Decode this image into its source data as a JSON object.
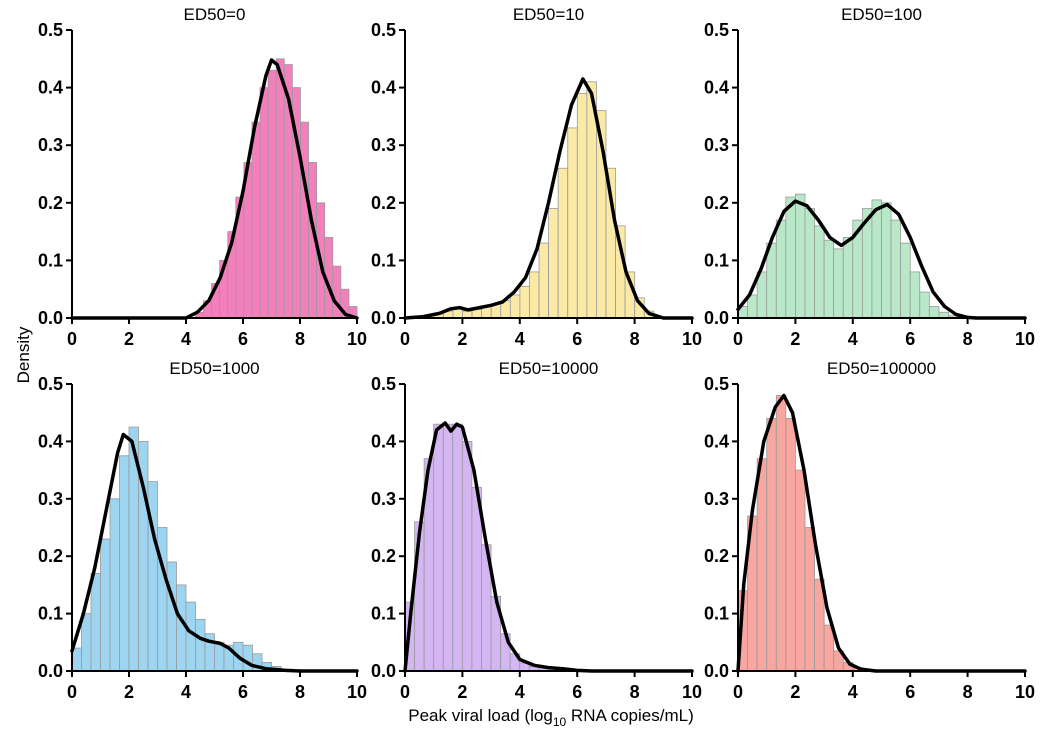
{
  "chart_data": {
    "type": "histogram-density-grid",
    "xlabel": {
      "prefix": "Peak viral load (log",
      "sub": "10",
      "suffix": " RNA copies/mL)"
    },
    "ylabel": "Density",
    "xlim": [
      0,
      10
    ],
    "ylim": [
      0,
      0.5
    ],
    "xticks": [
      "0",
      "2",
      "4",
      "6",
      "8",
      "10"
    ],
    "yticks": [
      "0.0",
      "0.1",
      "0.2",
      "0.3",
      "0.4",
      "0.5"
    ],
    "bin_width": 0.333,
    "panels": [
      {
        "title": "ED50=0",
        "color": "#f47fbd",
        "bins": [
          4.33,
          10
        ],
        "densities": [
          0.01,
          0.03,
          0.06,
          0.1,
          0.15,
          0.21,
          0.27,
          0.34,
          0.4,
          0.43,
          0.45,
          0.44,
          0.4,
          0.34,
          0.27,
          0.2,
          0.14,
          0.09,
          0.05,
          0.02
        ],
        "curve": [
          [
            0,
            0
          ],
          [
            4,
            0
          ],
          [
            4.4,
            0.01
          ],
          [
            4.8,
            0.03
          ],
          [
            5.2,
            0.07
          ],
          [
            5.6,
            0.13
          ],
          [
            6.0,
            0.22
          ],
          [
            6.4,
            0.33
          ],
          [
            6.8,
            0.42
          ],
          [
            7.0,
            0.448
          ],
          [
            7.2,
            0.44
          ],
          [
            7.6,
            0.38
          ],
          [
            8.0,
            0.28
          ],
          [
            8.4,
            0.17
          ],
          [
            8.8,
            0.08
          ],
          [
            9.2,
            0.03
          ],
          [
            9.6,
            0.006
          ],
          [
            10,
            0
          ]
        ]
      },
      {
        "title": "ED50=10",
        "color": "#faeaa6",
        "bins": [
          0.67,
          8.67
        ],
        "densities": [
          0.004,
          0.007,
          0.012,
          0.018,
          0.012,
          0.015,
          0.02,
          0.024,
          0.03,
          0.04,
          0.055,
          0.08,
          0.13,
          0.19,
          0.26,
          0.33,
          0.39,
          0.41,
          0.36,
          0.26,
          0.16,
          0.08,
          0.035,
          0.012
        ],
        "curve": [
          [
            0,
            0
          ],
          [
            0.6,
            0.002
          ],
          [
            1.2,
            0.008
          ],
          [
            1.6,
            0.016
          ],
          [
            1.9,
            0.018
          ],
          [
            2.2,
            0.014
          ],
          [
            2.6,
            0.018
          ],
          [
            3.0,
            0.022
          ],
          [
            3.4,
            0.028
          ],
          [
            3.8,
            0.045
          ],
          [
            4.2,
            0.07
          ],
          [
            4.6,
            0.12
          ],
          [
            5.0,
            0.2
          ],
          [
            5.4,
            0.29
          ],
          [
            5.8,
            0.37
          ],
          [
            6.2,
            0.415
          ],
          [
            6.5,
            0.39
          ],
          [
            6.9,
            0.29
          ],
          [
            7.3,
            0.17
          ],
          [
            7.7,
            0.08
          ],
          [
            8.1,
            0.03
          ],
          [
            8.5,
            0.008
          ],
          [
            9.0,
            0
          ],
          [
            10,
            0
          ]
        ]
      },
      {
        "title": "ED50=100",
        "color": "#b9e8c9",
        "bins": [
          0,
          8
        ],
        "densities": [
          0.02,
          0.04,
          0.08,
          0.13,
          0.17,
          0.21,
          0.215,
          0.19,
          0.16,
          0.135,
          0.12,
          0.14,
          0.17,
          0.19,
          0.205,
          0.2,
          0.17,
          0.13,
          0.08,
          0.045,
          0.02,
          0.01,
          0.004,
          0.002
        ],
        "curve": [
          [
            0,
            0.015
          ],
          [
            0.4,
            0.04
          ],
          [
            0.8,
            0.085
          ],
          [
            1.2,
            0.14
          ],
          [
            1.6,
            0.185
          ],
          [
            2.0,
            0.203
          ],
          [
            2.4,
            0.195
          ],
          [
            2.8,
            0.17
          ],
          [
            3.2,
            0.14
          ],
          [
            3.6,
            0.126
          ],
          [
            4.0,
            0.14
          ],
          [
            4.4,
            0.165
          ],
          [
            4.8,
            0.188
          ],
          [
            5.2,
            0.197
          ],
          [
            5.6,
            0.18
          ],
          [
            6.0,
            0.14
          ],
          [
            6.4,
            0.09
          ],
          [
            6.8,
            0.045
          ],
          [
            7.2,
            0.02
          ],
          [
            7.6,
            0.006
          ],
          [
            8.0,
            0.001
          ],
          [
            8.3,
            0
          ],
          [
            10,
            0
          ]
        ]
      },
      {
        "title": "ED50=1000",
        "color": "#9dd4f0",
        "bins": [
          0,
          8
        ],
        "densities": [
          0.04,
          0.1,
          0.17,
          0.23,
          0.3,
          0.375,
          0.425,
          0.4,
          0.33,
          0.25,
          0.19,
          0.15,
          0.12,
          0.09,
          0.065,
          0.05,
          0.045,
          0.05,
          0.045,
          0.03,
          0.015,
          0.008,
          0.003,
          0.001
        ],
        "curve": [
          [
            0,
            0.035
          ],
          [
            0.4,
            0.1
          ],
          [
            0.8,
            0.18
          ],
          [
            1.2,
            0.28
          ],
          [
            1.6,
            0.38
          ],
          [
            1.8,
            0.412
          ],
          [
            2.1,
            0.4
          ],
          [
            2.5,
            0.32
          ],
          [
            2.9,
            0.23
          ],
          [
            3.3,
            0.16
          ],
          [
            3.7,
            0.1
          ],
          [
            4.1,
            0.07
          ],
          [
            4.5,
            0.057
          ],
          [
            4.8,
            0.052
          ],
          [
            5.2,
            0.048
          ],
          [
            5.5,
            0.04
          ],
          [
            5.9,
            0.022
          ],
          [
            6.3,
            0.01
          ],
          [
            6.8,
            0.004
          ],
          [
            7.5,
            0.001
          ],
          [
            8.0,
            0
          ],
          [
            10,
            0
          ]
        ]
      },
      {
        "title": "ED50=10000",
        "color": "#d4b6f2",
        "bins": [
          0,
          6.33
        ],
        "densities": [
          0.12,
          0.26,
          0.37,
          0.43,
          0.43,
          0.43,
          0.4,
          0.32,
          0.22,
          0.13,
          0.065,
          0.03,
          0.014,
          0.008,
          0.005,
          0.004,
          0.003,
          0.002,
          0.001
        ],
        "curve": [
          [
            0,
            0
          ],
          [
            0.2,
            0.1
          ],
          [
            0.5,
            0.24
          ],
          [
            0.8,
            0.35
          ],
          [
            1.1,
            0.42
          ],
          [
            1.4,
            0.432
          ],
          [
            1.6,
            0.418
          ],
          [
            1.8,
            0.43
          ],
          [
            2.0,
            0.425
          ],
          [
            2.4,
            0.35
          ],
          [
            2.8,
            0.23
          ],
          [
            3.2,
            0.12
          ],
          [
            3.6,
            0.05
          ],
          [
            4.0,
            0.02
          ],
          [
            4.5,
            0.01
          ],
          [
            5.0,
            0.006
          ],
          [
            5.5,
            0.004
          ],
          [
            6.0,
            0.001
          ],
          [
            6.5,
            0
          ],
          [
            10,
            0
          ]
        ]
      },
      {
        "title": "ED50=100000",
        "color": "#f7a6a0",
        "bins": [
          0,
          4.67
        ],
        "densities": [
          0.14,
          0.27,
          0.37,
          0.44,
          0.48,
          0.44,
          0.35,
          0.25,
          0.16,
          0.08,
          0.035,
          0.015,
          0.006,
          0.002
        ],
        "curve": [
          [
            0,
            0
          ],
          [
            0.2,
            0.15
          ],
          [
            0.5,
            0.28
          ],
          [
            0.9,
            0.4
          ],
          [
            1.3,
            0.46
          ],
          [
            1.6,
            0.48
          ],
          [
            1.9,
            0.45
          ],
          [
            2.3,
            0.35
          ],
          [
            2.7,
            0.22
          ],
          [
            3.1,
            0.11
          ],
          [
            3.5,
            0.04
          ],
          [
            3.9,
            0.012
          ],
          [
            4.3,
            0.003
          ],
          [
            4.8,
            0
          ],
          [
            10,
            0
          ]
        ]
      }
    ]
  }
}
